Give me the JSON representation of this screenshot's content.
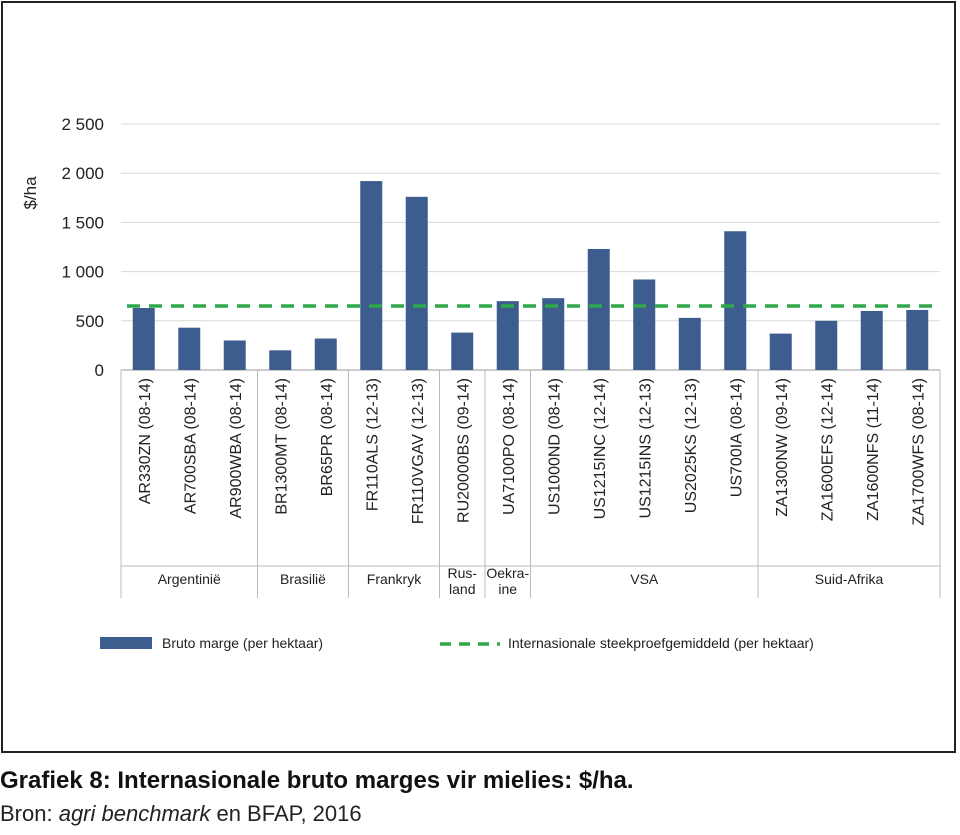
{
  "chart_data": {
    "type": "bar",
    "ylabel": "$/ha",
    "ylim": [
      0,
      2500
    ],
    "yticks": [
      0,
      500,
      1000,
      1500,
      2000,
      2500
    ],
    "ytick_labels": [
      "0",
      "500",
      "1 000",
      "1 500",
      "2 000",
      "2 500"
    ],
    "grid": true,
    "categories": [
      "AR330ZN (08-14)",
      "AR700SBA (08-14)",
      "AR900WBA (08-14)",
      "BR1300MT (08-14)",
      "BR65PR (08-14)",
      "FR110ALS (12-13)",
      "FR110VGAV (12-13)",
      "RU20000BS (09-14)",
      "UA7100PO (08-14)",
      "US1000ND (08-14)",
      "US1215INC (12-14)",
      "US1215INS (12-13)",
      "US2025KS (12-13)",
      "US700IA (08-14)",
      "ZA1300NW (09-14)",
      "ZA1600EFS (12-14)",
      "ZA1600NFS (11-14)",
      "ZA1700WFS (08-14)"
    ],
    "groups": [
      {
        "label": "Argentinië",
        "count": 3
      },
      {
        "label": "Brasilië",
        "count": 2
      },
      {
        "label": "Frankryk",
        "count": 2
      },
      {
        "label": "Rus-\nland",
        "count": 1
      },
      {
        "label": "Oekra-\nine",
        "count": 1
      },
      {
        "label": "VSA",
        "count": 5
      },
      {
        "label": "Suid-Afrika",
        "count": 4
      }
    ],
    "series": [
      {
        "name": "Bruto marge (per hektaar)",
        "type": "bar",
        "color": "#3d5d8f",
        "values": [
          630,
          430,
          300,
          200,
          320,
          1920,
          1760,
          380,
          700,
          730,
          1230,
          920,
          530,
          1410,
          370,
          500,
          600,
          610
        ]
      },
      {
        "name": "Internasionale steekproefgemiddeld (per hektaar)",
        "type": "line",
        "style": "dashed",
        "color": "#2ea84a",
        "value": 650
      }
    ],
    "legend": "bottom"
  },
  "caption": {
    "title": "Grafiek 8: Internasionale bruto marges vir mielies: $/ha.",
    "source_prefix": "Bron: ",
    "source_italic": "agri benchmark",
    "source_suffix": " en BFAP, 2016"
  }
}
